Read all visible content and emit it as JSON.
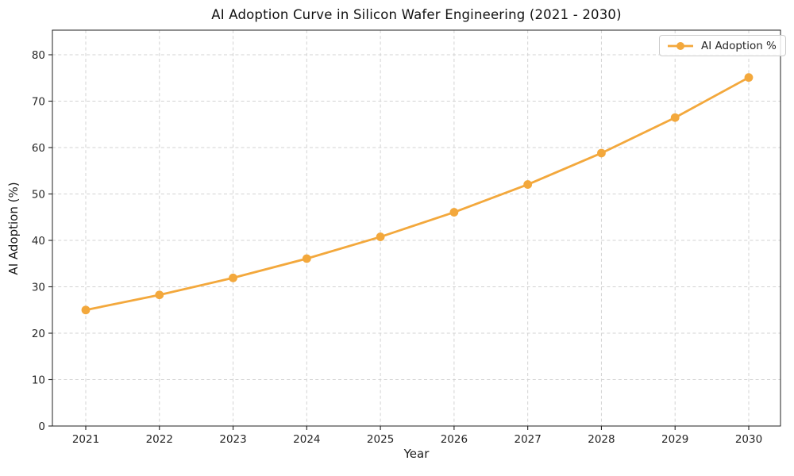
{
  "chart_data": {
    "type": "line",
    "title": "AI Adoption Curve in Silicon Wafer Engineering (2021 - 2030)",
    "xlabel": "Year",
    "ylabel": "AI Adoption (%)",
    "categories": [
      "2021",
      "2022",
      "2023",
      "2024",
      "2025",
      "2026",
      "2027",
      "2028",
      "2029",
      "2030"
    ],
    "series": [
      {
        "name": "AI Adoption %",
        "values": [
          25.0,
          28.25,
          31.92,
          36.07,
          40.76,
          46.06,
          52.04,
          58.81,
          66.46,
          75.1
        ],
        "color": "#F3A83C",
        "marker": "circle"
      }
    ],
    "ylim": [
      0,
      85.3
    ],
    "yticks": [
      0,
      10,
      20,
      30,
      40,
      50,
      60,
      70,
      80
    ],
    "grid": true,
    "grid_style": "dashed",
    "legend_position": "upper right",
    "colors": {
      "line": "#F3A83C",
      "grid": "#d3d3d3",
      "spine": "#222222",
      "tick_text": "#262626",
      "title_text": "#111111",
      "legend_border": "#cccccc",
      "background": "#ffffff"
    }
  }
}
